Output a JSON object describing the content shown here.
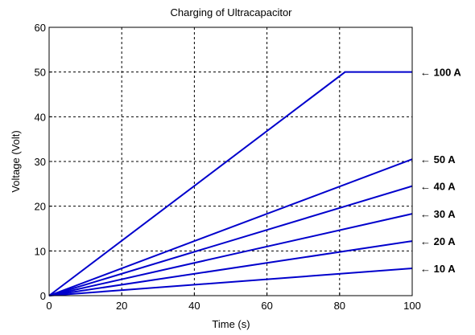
{
  "chart_data": {
    "type": "line",
    "title": "Charging of Ultracapacitor",
    "xlabel": "Time (s)",
    "ylabel": "Voltage (Volt)",
    "xlim": [
      0,
      100
    ],
    "ylim": [
      0,
      60
    ],
    "xticks": [
      "0",
      "20",
      "40",
      "60",
      "80",
      "100"
    ],
    "yticks": [
      "0",
      "10",
      "20",
      "30",
      "40",
      "50",
      "60"
    ],
    "xtick_values": [
      0,
      20,
      40,
      60,
      80,
      100
    ],
    "ytick_values": [
      0,
      10,
      20,
      30,
      40,
      50,
      60
    ],
    "grid": true,
    "line_color": "#0000cc",
    "series": [
      {
        "label": "100 A",
        "x": [
          0,
          81.5,
          100
        ],
        "y": [
          0,
          50,
          50
        ]
      },
      {
        "label": "50 A",
        "x": [
          0,
          100
        ],
        "y": [
          0,
          30.5
        ]
      },
      {
        "label": "40 A",
        "x": [
          0,
          100
        ],
        "y": [
          0,
          24.5
        ]
      },
      {
        "label": "30 A",
        "x": [
          0,
          100
        ],
        "y": [
          0,
          18.3
        ]
      },
      {
        "label": "20 A",
        "x": [
          0,
          100
        ],
        "y": [
          0,
          12.2
        ]
      },
      {
        "label": "10 A",
        "x": [
          0,
          100
        ],
        "y": [
          0,
          6.1
        ]
      }
    ],
    "annotation_arrow": "←"
  }
}
